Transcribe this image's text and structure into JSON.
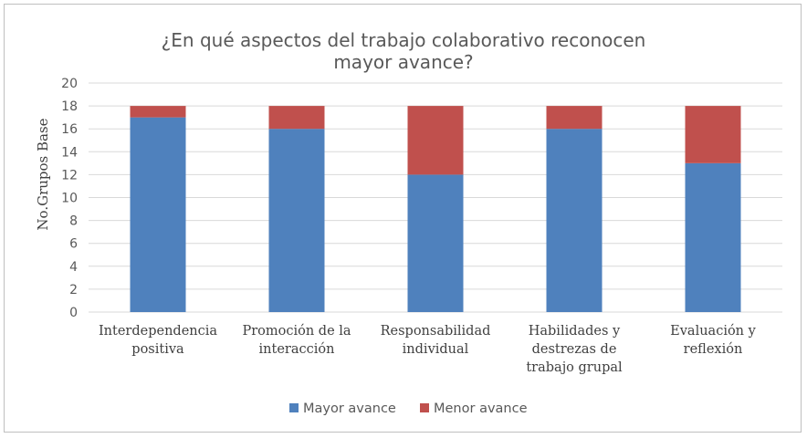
{
  "chart_data": {
    "type": "bar",
    "stacked": true,
    "title": "¿En qué aspectos del trabajo colaborativo reconocen mayor avance?",
    "title_lines": [
      "¿En qué aspectos del trabajo colaborativo reconocen",
      "mayor avance?"
    ],
    "xlabel": "",
    "ylabel": "No.Grupos Base",
    "ylim": [
      0,
      20
    ],
    "yticks": [
      0,
      2,
      4,
      6,
      8,
      10,
      12,
      14,
      16,
      18,
      20
    ],
    "grid": true,
    "legend_position": "bottom",
    "categories": [
      [
        "Interdependencia",
        "positiva"
      ],
      [
        "Promoción de la",
        "interacción"
      ],
      [
        "Responsabilidad",
        "individual"
      ],
      [
        "Habilidades y",
        "destrezas de",
        "trabajo grupal"
      ],
      [
        "Evaluación y",
        "reflexión"
      ]
    ],
    "series": [
      {
        "name": "Mayor avance",
        "color": "#4f81bd",
        "values": [
          17,
          16,
          12,
          16,
          13
        ]
      },
      {
        "name": "Menor avance",
        "color": "#c0504d",
        "values": [
          1,
          2,
          6,
          2,
          5
        ]
      }
    ]
  }
}
